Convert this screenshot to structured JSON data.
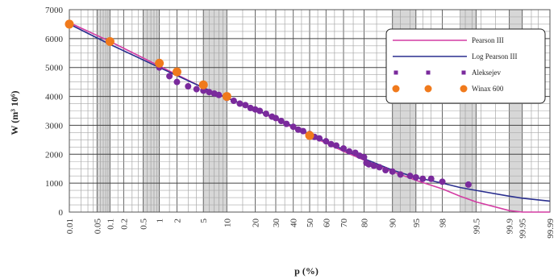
{
  "chart_data": {
    "type": "line",
    "title": "",
    "xlabel": "p (%)",
    "ylabel": "W (m³ 10⁶)",
    "x_scale": "normal-probability",
    "x_ticks": [
      "0.01",
      "0.05",
      "0.1",
      "0.2",
      "0.5",
      "1",
      "2",
      "5",
      "10",
      "20",
      "30",
      "40",
      "50",
      "60",
      "70",
      "80",
      "90",
      "95",
      "98",
      "99.5",
      "99.9",
      "99.95",
      "99.99"
    ],
    "y_ticks": [
      "0",
      "1000",
      "2000",
      "3000",
      "4000",
      "5000",
      "6000",
      "7000"
    ],
    "ylim": [
      0,
      7000
    ],
    "xlim": [
      0.01,
      99.99
    ],
    "grid": true,
    "legend_position": "top-right",
    "series": [
      {
        "name": "Pearson III",
        "kind": "line",
        "color": "#d33ca3",
        "x": [
          0.01,
          0.1,
          1,
          5,
          10,
          20,
          30,
          50,
          70,
          80,
          90,
          95,
          98,
          99,
          99.5,
          99.9,
          99.95,
          99.99
        ],
        "y": [
          6550,
          5900,
          5050,
          4300,
          3950,
          3550,
          3200,
          2650,
          2100,
          1800,
          1400,
          1100,
          800,
          550,
          350,
          50,
          0,
          0
        ]
      },
      {
        "name": "Log Pearson III",
        "kind": "line",
        "color": "#2a2f8f",
        "x": [
          0.01,
          0.1,
          1,
          5,
          10,
          20,
          30,
          50,
          70,
          80,
          90,
          95,
          98,
          99,
          99.5,
          99.9,
          99.95,
          99.99
        ],
        "y": [
          6500,
          5800,
          5000,
          4300,
          3950,
          3550,
          3250,
          2700,
          2150,
          1850,
          1450,
          1200,
          1000,
          850,
          750,
          550,
          480,
          380
        ]
      },
      {
        "name": "Aleksejev",
        "kind": "scatter",
        "color": "#7a2a9c",
        "x": [
          1,
          1.5,
          2,
          3,
          4,
          5,
          6,
          7,
          8,
          10,
          12,
          14,
          16,
          18,
          20,
          22,
          25,
          28,
          30,
          33,
          36,
          40,
          43,
          46,
          50,
          53,
          56,
          60,
          63,
          66,
          70,
          73,
          76,
          78,
          80,
          81,
          82,
          84,
          86,
          88,
          90,
          92,
          94,
          95,
          96,
          97,
          98,
          99.3
        ],
        "y": [
          5000,
          4700,
          4500,
          4350,
          4250,
          4200,
          4150,
          4100,
          4050,
          3950,
          3850,
          3750,
          3700,
          3600,
          3550,
          3500,
          3400,
          3300,
          3250,
          3150,
          3050,
          2950,
          2850,
          2800,
          2700,
          2600,
          2550,
          2450,
          2350,
          2300,
          2200,
          2100,
          2050,
          1950,
          1900,
          1700,
          1650,
          1600,
          1550,
          1450,
          1400,
          1300,
          1250,
          1200,
          1150,
          1150,
          1050,
          950
        ]
      },
      {
        "name": "Winax 600",
        "kind": "scatter",
        "color": "#f07a1c",
        "x": [
          0.01,
          0.1,
          1,
          2,
          5,
          10,
          50
        ],
        "y": [
          6500,
          5900,
          5150,
          4850,
          4400,
          4000,
          2650
        ]
      }
    ]
  }
}
